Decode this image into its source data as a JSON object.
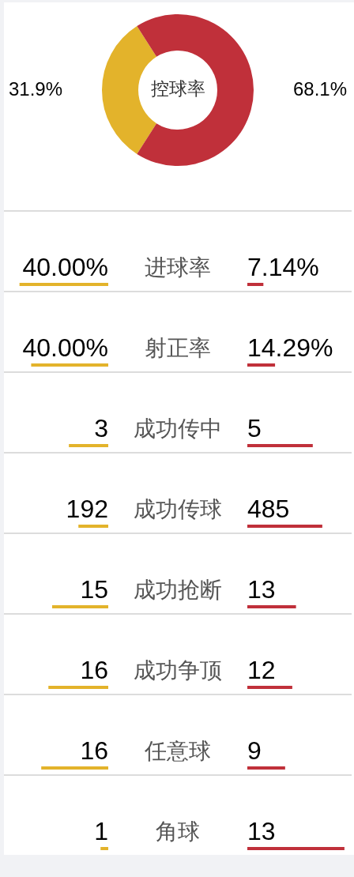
{
  "chart_data": [
    {
      "type": "donut",
      "title": "控球率",
      "categories": [
        null,
        null
      ],
      "values": [
        31.9,
        68.1
      ],
      "colors": [
        "#e3b32b",
        "#c0303a"
      ],
      "value_labels": [
        "31.9%",
        "68.1%"
      ]
    },
    {
      "type": "bar",
      "orientation": "horizontal",
      "categories": [
        "进球率"
      ],
      "values": [
        40
      ],
      "color": "#e3b32b",
      "value_labels": [
        "40.00%"
      ]
    },
    {
      "type": "bar",
      "orientation": "horizontal",
      "categories": [
        null
      ],
      "values": [
        7.14
      ],
      "color": "#c0303a",
      "value_labels": [
        "7.14%"
      ]
    },
    {
      "type": "bar",
      "orientation": "horizontal",
      "categories": [
        "射正率"
      ],
      "values": [
        40
      ],
      "color": "#e3b32b",
      "value_labels": [
        "40.00%"
      ]
    },
    {
      "type": "bar",
      "orientation": "horizontal",
      "categories": [
        null
      ],
      "values": [
        14.29
      ],
      "color": "#c0303a",
      "value_labels": [
        "14.29%"
      ]
    },
    {
      "type": "bar",
      "orientation": "horizontal",
      "categories": [
        "成功传中"
      ],
      "values": [
        3
      ],
      "color": "#e3b32b",
      "value_labels": [
        "3"
      ]
    },
    {
      "type": "bar",
      "orientation": "horizontal",
      "categories": [
        null
      ],
      "values": [
        5
      ],
      "color": "#c0303a",
      "value_labels": [
        "5"
      ]
    },
    {
      "type": "bar",
      "orientation": "horizontal",
      "categories": [
        "成功传球"
      ],
      "values": [
        192
      ],
      "color": "#e3b32b",
      "value_labels": [
        "192"
      ]
    },
    {
      "type": "bar",
      "orientation": "horizontal",
      "categories": [
        null
      ],
      "values": [
        485
      ],
      "color": "#c0303a",
      "value_labels": [
        "485"
      ]
    },
    {
      "type": "bar",
      "orientation": "horizontal",
      "categories": [
        "成功抢断"
      ],
      "values": [
        15
      ],
      "color": "#e3b32b",
      "value_labels": [
        "15"
      ]
    },
    {
      "type": "bar",
      "orientation": "horizontal",
      "categories": [
        null
      ],
      "values": [
        13
      ],
      "color": "#c0303a",
      "value_labels": [
        "13"
      ]
    },
    {
      "type": "bar",
      "orientation": "horizontal",
      "categories": [
        "成功争顶"
      ],
      "values": [
        16
      ],
      "color": "#e3b32b",
      "value_labels": [
        "16"
      ]
    },
    {
      "type": "bar",
      "orientation": "horizontal",
      "categories": [
        null
      ],
      "values": [
        12
      ],
      "color": "#c0303a",
      "value_labels": [
        "12"
      ]
    },
    {
      "type": "bar",
      "orientation": "horizontal",
      "categories": [
        "任意球"
      ],
      "values": [
        16
      ],
      "color": "#e3b32b",
      "value_labels": [
        "16"
      ]
    },
    {
      "type": "bar",
      "orientation": "horizontal",
      "categories": [
        null
      ],
      "values": [
        9
      ],
      "color": "#c0303a",
      "value_labels": [
        "9"
      ]
    },
    {
      "type": "bar",
      "orientation": "horizontal",
      "categories": [
        "角球"
      ],
      "values": [
        1
      ],
      "color": "#e3b32b",
      "value_labels": [
        "1"
      ]
    },
    {
      "type": "bar",
      "orientation": "horizontal",
      "categories": [
        null
      ],
      "values": [
        13
      ],
      "color": "#c0303a",
      "value_labels": [
        "13"
      ]
    }
  ]
}
